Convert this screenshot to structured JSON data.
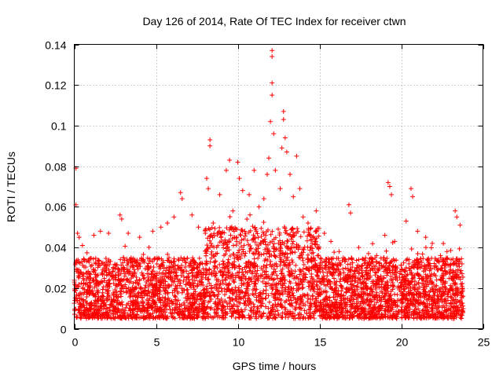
{
  "chart_data": {
    "type": "scatter",
    "title": "Day 126 of 2014, Rate Of TEC Index for receiver ctwn",
    "xlabel": "GPS time / hours",
    "ylabel": "ROTI / TECUs",
    "xlim": [
      0,
      25
    ],
    "ylim": [
      0,
      0.14
    ],
    "xticks": [
      0,
      5,
      10,
      15,
      20,
      25
    ],
    "xtick_labels": [
      "0",
      "5",
      "10",
      "15",
      "20",
      "25"
    ],
    "yticks": [
      0,
      0.02,
      0.04,
      0.06,
      0.08,
      0.1,
      0.12,
      0.14
    ],
    "ytick_labels": [
      "0",
      "0.02",
      "0.04",
      "0.06",
      "0.08",
      "0.1",
      "0.12",
      "0.14"
    ],
    "grid": true,
    "marker": "+",
    "color": "#ff0000",
    "series": [
      {
        "name": "ROTI",
        "points": [
          [
            0.1,
            0.079
          ],
          [
            0.1,
            0.061
          ],
          [
            0.2,
            0.047
          ],
          [
            0.3,
            0.045
          ],
          [
            0.5,
            0.041
          ],
          [
            1.2,
            0.046
          ],
          [
            1.6,
            0.048
          ],
          [
            2.1,
            0.047
          ],
          [
            2.8,
            0.056
          ],
          [
            2.9,
            0.054
          ],
          [
            3.3,
            0.047
          ],
          [
            4.0,
            0.045
          ],
          [
            4.8,
            0.048
          ],
          [
            5.3,
            0.05
          ],
          [
            5.7,
            0.052
          ],
          [
            6.1,
            0.055
          ],
          [
            6.5,
            0.067
          ],
          [
            6.6,
            0.064
          ],
          [
            7.2,
            0.056
          ],
          [
            7.6,
            0.05
          ],
          [
            8.1,
            0.074
          ],
          [
            8.2,
            0.069
          ],
          [
            8.3,
            0.093
          ],
          [
            8.3,
            0.09
          ],
          [
            8.5,
            0.052
          ],
          [
            8.9,
            0.066
          ],
          [
            9.3,
            0.078
          ],
          [
            9.5,
            0.083
          ],
          [
            9.7,
            0.058
          ],
          [
            10.0,
            0.082
          ],
          [
            10.1,
            0.074
          ],
          [
            10.3,
            0.068
          ],
          [
            10.7,
            0.066
          ],
          [
            11.0,
            0.078
          ],
          [
            11.3,
            0.06
          ],
          [
            11.6,
            0.064
          ],
          [
            11.8,
            0.076
          ],
          [
            11.9,
            0.084
          ],
          [
            12.0,
            0.102
          ],
          [
            12.1,
            0.137
          ],
          [
            12.1,
            0.134
          ],
          [
            12.1,
            0.121
          ],
          [
            12.1,
            0.115
          ],
          [
            12.2,
            0.096
          ],
          [
            12.3,
            0.078
          ],
          [
            12.6,
            0.069
          ],
          [
            12.7,
            0.089
          ],
          [
            12.8,
            0.107
          ],
          [
            12.8,
            0.103
          ],
          [
            12.9,
            0.094
          ],
          [
            13.0,
            0.087
          ],
          [
            13.2,
            0.076
          ],
          [
            13.4,
            0.065
          ],
          [
            13.6,
            0.085
          ],
          [
            13.8,
            0.069
          ],
          [
            14.0,
            0.055
          ],
          [
            14.3,
            0.052
          ],
          [
            14.8,
            0.058
          ],
          [
            15.3,
            0.047
          ],
          [
            15.7,
            0.043
          ],
          [
            16.2,
            0.038
          ],
          [
            16.8,
            0.061
          ],
          [
            16.9,
            0.057
          ],
          [
            17.4,
            0.04
          ],
          [
            18.0,
            0.037
          ],
          [
            18.5,
            0.036
          ],
          [
            19.0,
            0.046
          ],
          [
            19.2,
            0.072
          ],
          [
            19.3,
            0.07
          ],
          [
            19.4,
            0.066
          ],
          [
            19.6,
            0.043
          ],
          [
            20.3,
            0.053
          ],
          [
            20.6,
            0.069
          ],
          [
            20.7,
            0.065
          ],
          [
            21.0,
            0.048
          ],
          [
            21.5,
            0.045
          ],
          [
            21.9,
            0.042
          ],
          [
            22.4,
            0.036
          ],
          [
            22.8,
            0.038
          ],
          [
            23.3,
            0.058
          ],
          [
            23.4,
            0.055
          ],
          [
            23.6,
            0.051
          ]
        ],
        "background_band": {
          "description": "dense cloud of ROTI samples from 0 to 23.8 h",
          "typical_range": [
            0.005,
            0.035
          ],
          "elevated_window_hours": [
            8,
            15
          ],
          "elevated_range": [
            0.005,
            0.05
          ]
        }
      }
    ]
  }
}
